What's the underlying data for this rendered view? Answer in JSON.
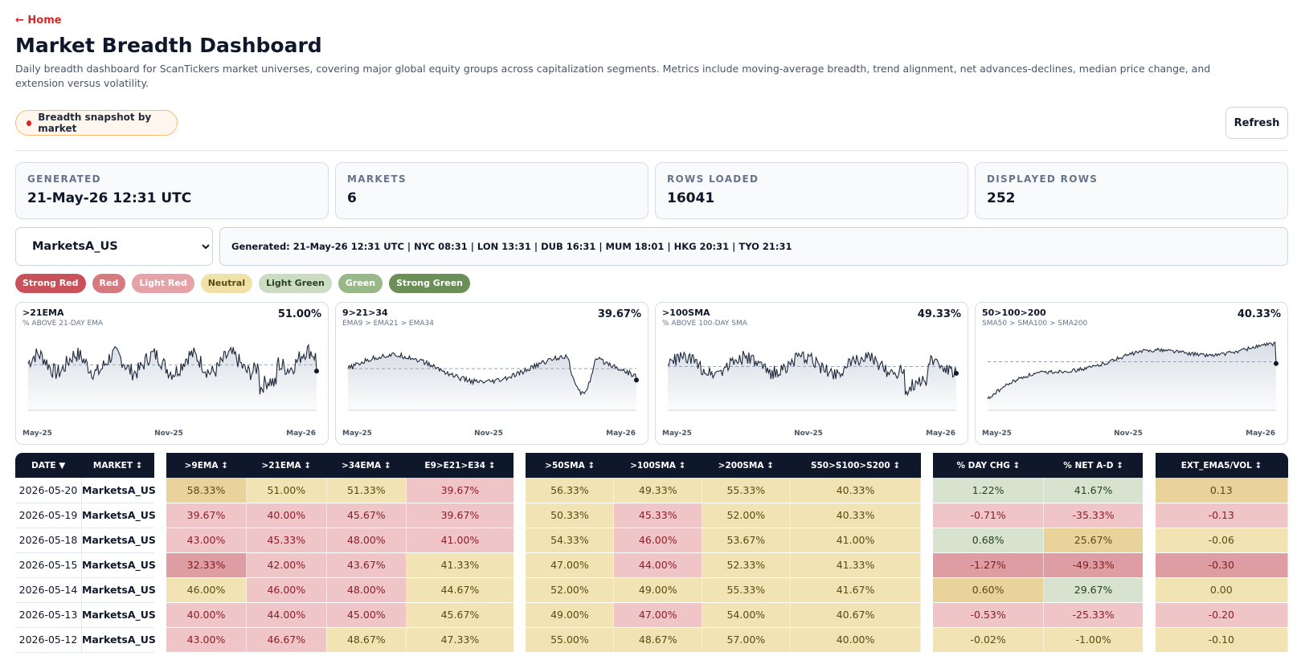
{
  "nav": {
    "home_label": "← Home"
  },
  "header": {
    "title": "Market Breadth Dashboard",
    "description": "Daily breadth dashboard for ScanTickers market universes, covering major global equity groups across capitalization segments. Metrics include moving-average breadth, trend alignment, net advances-declines, median price change, and extension versus volatility."
  },
  "snapshot_pill": "Breadth snapshot by market",
  "refresh_label": "Refresh",
  "stats": [
    {
      "label": "GENERATED",
      "value": "21-May-26 12:31 UTC"
    },
    {
      "label": "MARKETS",
      "value": "6"
    },
    {
      "label": "ROWS LOADED",
      "value": "16041"
    },
    {
      "label": "DISPLAYED ROWS",
      "value": "252"
    }
  ],
  "market_select": {
    "value": "MarketsA_US"
  },
  "generated_info": "Generated: 21-May-26 12:31 UTC | NYC 08:31 | LON 13:31 | DUB 16:31 | MUM 18:01 | HKG 20:31 | TYO 21:31",
  "legend": [
    {
      "label": "Strong Red",
      "bg": "#c9525a",
      "fg": "#ffffff"
    },
    {
      "label": "Red",
      "bg": "#d67a80",
      "fg": "#ffffff"
    },
    {
      "label": "Light Red",
      "bg": "#e5a3a8",
      "fg": "#ffffff"
    },
    {
      "label": "Neutral",
      "bg": "#f0e1a8",
      "fg": "#5b4a12"
    },
    {
      "label": "Light Green",
      "bg": "#cbdcc2",
      "fg": "#27401f"
    },
    {
      "label": "Green",
      "bg": "#99b888",
      "fg": "#ffffff"
    },
    {
      "label": "Strong Green",
      "bg": "#6b8f57",
      "fg": "#ffffff"
    }
  ],
  "charts": [
    {
      "title": ">21EMA",
      "subtitle": "% ABOVE 21-DAY EMA",
      "value": "51.00%",
      "x_labels": [
        "May-25",
        "Nov-25",
        "May-26"
      ]
    },
    {
      "title": "9>21>34",
      "subtitle": "EMA9 > EMA21 > EMA34",
      "value": "39.67%",
      "x_labels": [
        "May-25",
        "Nov-25",
        "May-26"
      ]
    },
    {
      "title": ">100SMA",
      "subtitle": "% ABOVE 100-DAY SMA",
      "value": "49.33%",
      "x_labels": [
        "May-25",
        "Nov-25",
        "May-26"
      ]
    },
    {
      "title": "50>100>200",
      "subtitle": "SMA50 > SMA100 > SMA200",
      "value": "40.33%",
      "x_labels": [
        "May-25",
        "Nov-25",
        "May-26"
      ]
    }
  ],
  "table": {
    "columns": [
      "DATE ▼",
      "MARKET ↕",
      ">9EMA ↕",
      ">21EMA ↕",
      ">34EMA ↕",
      "E9>E21>E34 ↕",
      ">50SMA ↕",
      ">100SMA ↕",
      ">200SMA ↕",
      "S50>S100>S200 ↕",
      "% DAY CHG ↕",
      "% NET A-D ↕",
      "EXT_EMA5/VOL ↕"
    ],
    "rows": [
      [
        "2026-05-20",
        "MarketsA_US",
        "58.33%",
        "51.00%",
        "51.33%",
        "39.67%",
        "56.33%",
        "49.33%",
        "55.33%",
        "40.33%",
        "1.22%",
        "41.67%",
        "0.13"
      ],
      [
        "2026-05-19",
        "MarketsA_US",
        "39.67%",
        "40.00%",
        "45.67%",
        "39.67%",
        "50.33%",
        "45.33%",
        "52.00%",
        "40.33%",
        "-0.71%",
        "-35.33%",
        "-0.13"
      ],
      [
        "2026-05-18",
        "MarketsA_US",
        "43.00%",
        "45.33%",
        "48.00%",
        "41.00%",
        "54.33%",
        "46.00%",
        "53.67%",
        "41.00%",
        "0.68%",
        "25.67%",
        "-0.06"
      ],
      [
        "2026-05-15",
        "MarketsA_US",
        "32.33%",
        "42.00%",
        "43.67%",
        "41.33%",
        "47.00%",
        "44.00%",
        "52.33%",
        "41.33%",
        "-1.27%",
        "-49.33%",
        "-0.30"
      ],
      [
        "2026-05-14",
        "MarketsA_US",
        "46.00%",
        "46.00%",
        "48.00%",
        "44.67%",
        "52.00%",
        "49.00%",
        "55.33%",
        "41.67%",
        "0.60%",
        "29.67%",
        "0.00"
      ],
      [
        "2026-05-13",
        "MarketsA_US",
        "40.00%",
        "44.00%",
        "45.00%",
        "45.67%",
        "49.00%",
        "47.00%",
        "54.00%",
        "40.67%",
        "-0.53%",
        "-25.33%",
        "-0.20"
      ],
      [
        "2026-05-12",
        "MarketsA_US",
        "43.00%",
        "46.67%",
        "48.67%",
        "47.33%",
        "55.00%",
        "48.67%",
        "57.00%",
        "40.00%",
        "-0.02%",
        "-1.00%",
        "-0.10"
      ]
    ],
    "cell_colors": [
      [
        "N2",
        "N",
        "N",
        "LR",
        "N",
        "N",
        "N",
        "N",
        "LG",
        "LG",
        "N2"
      ],
      [
        "LR",
        "LR",
        "LR",
        "LR",
        "N",
        "LR",
        "N",
        "N",
        "LR",
        "LR",
        "LR"
      ],
      [
        "LR",
        "LR",
        "LR",
        "LR",
        "N",
        "LR",
        "N",
        "N",
        "LG",
        "N2",
        "N"
      ],
      [
        "R",
        "LR",
        "LR",
        "N",
        "N",
        "LR",
        "N",
        "N",
        "R",
        "R",
        "R"
      ],
      [
        "N",
        "LR",
        "LR",
        "N",
        "N",
        "N",
        "N",
        "N",
        "N2",
        "LG",
        "N"
      ],
      [
        "LR",
        "LR",
        "LR",
        "N",
        "N",
        "LR",
        "N",
        "N",
        "LR",
        "LR",
        "LR"
      ],
      [
        "LR",
        "LR",
        "N",
        "N",
        "N",
        "N",
        "N",
        "N",
        "N",
        "N",
        "N"
      ]
    ]
  }
}
